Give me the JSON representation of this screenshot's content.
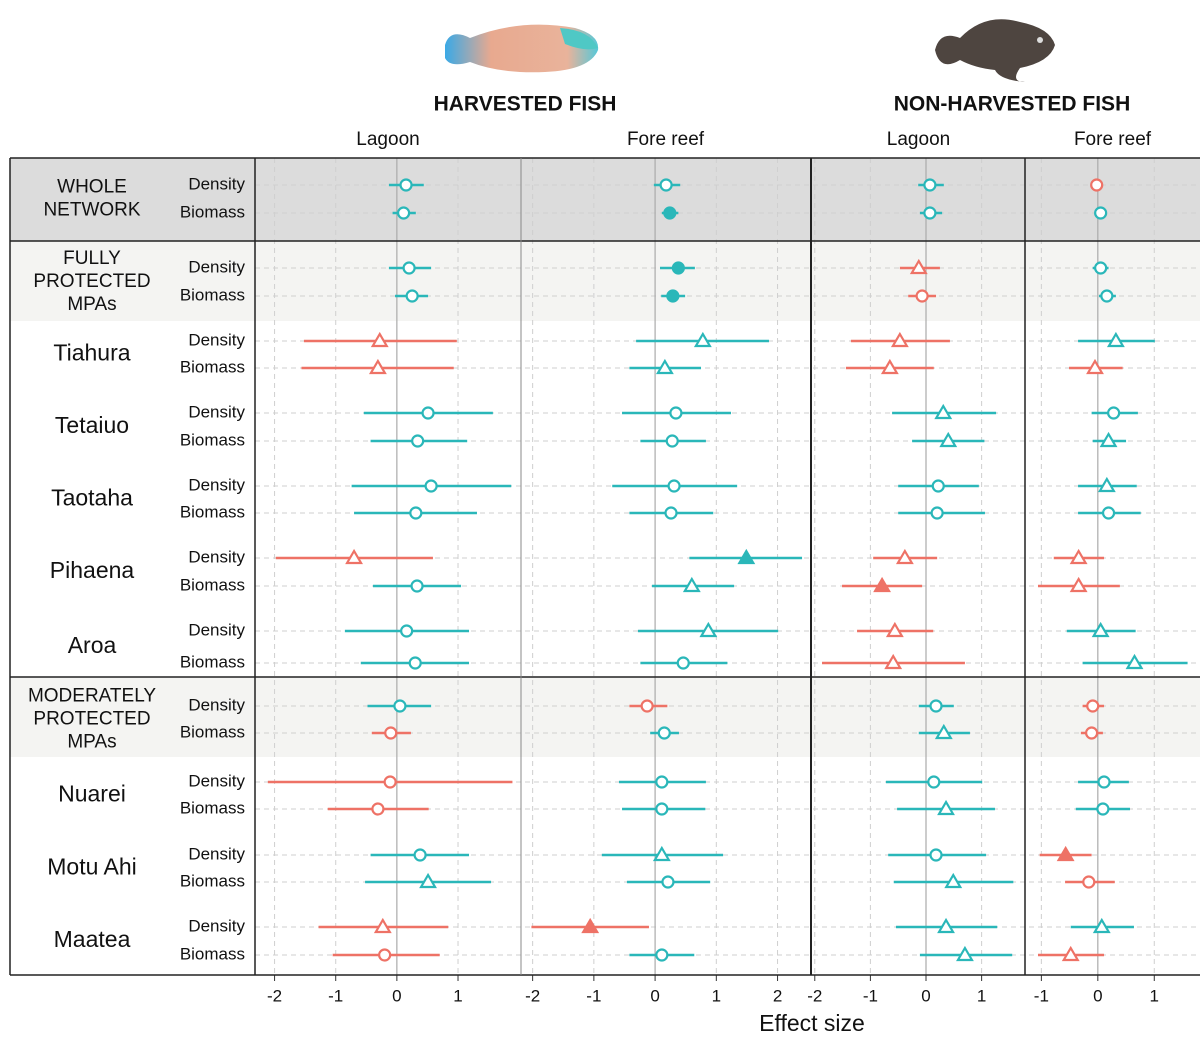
{
  "chart_data": {
    "type": "forest",
    "x_label": "Effect size",
    "metrics": [
      "Density",
      "Biomass"
    ],
    "groups": [
      {
        "label_lines": [
          "WHOLE",
          "NETWORK"
        ],
        "label_style": "caps",
        "background": "#dcdcdc"
      },
      {
        "label_lines": [
          "FULLY",
          "PROTECTED",
          "MPAs"
        ],
        "label_style": "caps",
        "background": "#f4f4f2"
      },
      {
        "label_lines": [
          "Tiahura"
        ],
        "label_style": "site",
        "background": "#ffffff"
      },
      {
        "label_lines": [
          "Tetaiuo"
        ],
        "label_style": "site",
        "background": "#ffffff"
      },
      {
        "label_lines": [
          "Taotaha"
        ],
        "label_style": "site",
        "background": "#ffffff"
      },
      {
        "label_lines": [
          "Pihaena"
        ],
        "label_style": "site",
        "background": "#ffffff"
      },
      {
        "label_lines": [
          "Aroa"
        ],
        "label_style": "site",
        "background": "#ffffff"
      },
      {
        "label_lines": [
          "MODERATELY",
          "PROTECTED",
          "MPAs"
        ],
        "label_style": "caps",
        "background": "#f4f4f2"
      },
      {
        "label_lines": [
          "Nuarei"
        ],
        "label_style": "site",
        "background": "#ffffff"
      },
      {
        "label_lines": [
          "Motu Ahi"
        ],
        "label_style": "site",
        "background": "#ffffff"
      },
      {
        "label_lines": [
          "Maatea"
        ],
        "label_style": "site",
        "background": "#ffffff"
      }
    ],
    "sections": [
      {
        "title": "HARVESTED FISH",
        "panels": [
          {
            "title": "Lagoon",
            "xlim": [
              -2.32,
              2.03
            ],
            "xticks": [
              -2,
              -1,
              0,
              1
            ],
            "values": [
              0.15,
              0.11,
              0.2,
              0.25,
              -0.28,
              -0.31,
              0.51,
              0.34,
              0.56,
              0.31,
              -0.7,
              0.33,
              0.16,
              0.3,
              0.05,
              -0.1,
              -0.11,
              -0.31,
              0.38,
              0.51,
              -0.23,
              -0.2
            ],
            "lower": [
              -0.13,
              -0.07,
              -0.13,
              -0.03,
              -1.52,
              -1.56,
              -0.54,
              -0.43,
              -0.74,
              -0.7,
              -1.98,
              -0.39,
              -0.85,
              -0.59,
              -0.48,
              -0.41,
              -2.11,
              -1.13,
              -0.43,
              -0.52,
              -1.28,
              -1.05
            ],
            "upper": [
              0.44,
              0.31,
              0.56,
              0.51,
              0.98,
              0.93,
              1.57,
              1.15,
              1.87,
              1.31,
              0.59,
              1.05,
              1.18,
              1.18,
              0.56,
              0.23,
              1.89,
              0.52,
              1.18,
              1.54,
              0.84,
              0.7
            ],
            "colors": [
              "#2ab7b9",
              "#2ab7b9",
              "#2ab7b9",
              "#2ab7b9",
              "#ee7266",
              "#ee7266",
              "#2ab7b9",
              "#2ab7b9",
              "#2ab7b9",
              "#2ab7b9",
              "#ee7266",
              "#2ab7b9",
              "#2ab7b9",
              "#2ab7b9",
              "#2ab7b9",
              "#ee7266",
              "#ee7266",
              "#ee7266",
              "#2ab7b9",
              "#2ab7b9",
              "#ee7266",
              "#ee7266"
            ],
            "markers": [
              "circle",
              "circle",
              "circle",
              "circle",
              "triangle",
              "triangle",
              "circle",
              "circle",
              "circle",
              "circle",
              "triangle",
              "circle",
              "circle",
              "circle",
              "circle",
              "circle",
              "circle",
              "circle",
              "circle",
              "triangle",
              "triangle",
              "circle"
            ],
            "filled": [
              false,
              false,
              false,
              false,
              false,
              false,
              false,
              false,
              false,
              false,
              false,
              false,
              false,
              false,
              false,
              false,
              false,
              false,
              false,
              false,
              false,
              false
            ]
          },
          {
            "title": "Fore reef",
            "xlim": [
              -2.19,
              2.53
            ],
            "xticks": [
              -2,
              -1,
              0,
              1,
              2
            ],
            "values": [
              0.18,
              0.24,
              0.38,
              0.29,
              0.78,
              0.16,
              0.34,
              0.28,
              0.31,
              0.26,
              1.49,
              0.6,
              0.87,
              0.46,
              -0.13,
              0.15,
              0.11,
              0.11,
              0.11,
              0.21,
              -1.06,
              0.11
            ],
            "lower": [
              -0.02,
              0.11,
              0.08,
              0.1,
              -0.31,
              -0.42,
              -0.54,
              -0.24,
              -0.7,
              -0.42,
              0.56,
              -0.05,
              -0.28,
              -0.24,
              -0.42,
              -0.08,
              -0.59,
              -0.54,
              -0.87,
              -0.46,
              -2.02,
              -0.42
            ],
            "upper": [
              0.41,
              0.38,
              0.65,
              0.49,
              1.86,
              0.75,
              1.24,
              0.83,
              1.34,
              0.95,
              2.4,
              1.29,
              2.01,
              1.18,
              0.2,
              0.39,
              0.83,
              0.82,
              1.11,
              0.9,
              -0.1,
              0.64
            ],
            "colors": [
              "#2ab7b9",
              "#2ab7b9",
              "#2ab7b9",
              "#2ab7b9",
              "#2ab7b9",
              "#2ab7b9",
              "#2ab7b9",
              "#2ab7b9",
              "#2ab7b9",
              "#2ab7b9",
              "#2ab7b9",
              "#2ab7b9",
              "#2ab7b9",
              "#2ab7b9",
              "#ee7266",
              "#2ab7b9",
              "#2ab7b9",
              "#2ab7b9",
              "#2ab7b9",
              "#2ab7b9",
              "#ee7266",
              "#2ab7b9"
            ],
            "markers": [
              "circle",
              "circle",
              "circle",
              "circle",
              "triangle",
              "triangle",
              "circle",
              "circle",
              "circle",
              "circle",
              "triangle",
              "triangle",
              "triangle",
              "circle",
              "circle",
              "circle",
              "circle",
              "circle",
              "triangle",
              "circle",
              "triangle",
              "circle"
            ],
            "filled": [
              false,
              true,
              true,
              true,
              false,
              false,
              false,
              false,
              false,
              false,
              true,
              false,
              false,
              false,
              false,
              false,
              false,
              false,
              false,
              false,
              true,
              false
            ]
          }
        ]
      },
      {
        "title": "NON-HARVESTED FISH",
        "panels": [
          {
            "title": "Lagoon",
            "xlim": [
              -2.05,
              1.78
            ],
            "xticks": [
              -2,
              -1,
              0,
              1
            ],
            "values": [
              0.07,
              0.07,
              -0.13,
              -0.07,
              -0.47,
              -0.65,
              0.31,
              0.4,
              0.22,
              0.2,
              -0.38,
              -0.79,
              -0.56,
              -0.59,
              0.18,
              0.32,
              0.14,
              0.36,
              0.18,
              0.49,
              0.36,
              0.7
            ],
            "lower": [
              -0.14,
              -0.11,
              -0.47,
              -0.32,
              -1.35,
              -1.44,
              -0.61,
              -0.25,
              -0.5,
              -0.5,
              -0.95,
              -1.51,
              -1.24,
              -1.87,
              -0.13,
              -0.13,
              -0.72,
              -0.52,
              -0.68,
              -0.58,
              -0.54,
              -0.11
            ],
            "upper": [
              0.32,
              0.29,
              0.25,
              0.18,
              0.43,
              0.14,
              1.26,
              1.05,
              0.95,
              1.06,
              0.2,
              -0.07,
              0.13,
              0.7,
              0.5,
              0.79,
              1.01,
              1.24,
              1.08,
              1.57,
              1.28,
              1.55
            ],
            "colors": [
              "#2ab7b9",
              "#2ab7b9",
              "#ee7266",
              "#ee7266",
              "#ee7266",
              "#ee7266",
              "#2ab7b9",
              "#2ab7b9",
              "#2ab7b9",
              "#2ab7b9",
              "#ee7266",
              "#ee7266",
              "#ee7266",
              "#ee7266",
              "#2ab7b9",
              "#2ab7b9",
              "#2ab7b9",
              "#2ab7b9",
              "#2ab7b9",
              "#2ab7b9",
              "#2ab7b9",
              "#2ab7b9"
            ],
            "markers": [
              "circle",
              "circle",
              "triangle",
              "circle",
              "triangle",
              "triangle",
              "triangle",
              "triangle",
              "circle",
              "circle",
              "triangle",
              "triangle",
              "triangle",
              "triangle",
              "circle",
              "triangle",
              "circle",
              "triangle",
              "circle",
              "triangle",
              "triangle",
              "triangle"
            ],
            "filled": [
              false,
              false,
              false,
              false,
              false,
              false,
              false,
              false,
              false,
              false,
              false,
              true,
              false,
              false,
              false,
              false,
              false,
              false,
              false,
              false,
              false,
              false
            ]
          },
          {
            "title": "Fore reef",
            "xlim": [
              -1.29,
              1.81
            ],
            "xticks": [
              -1,
              0,
              1
            ],
            "values": [
              -0.02,
              0.05,
              0.05,
              0.16,
              0.32,
              -0.05,
              0.28,
              0.19,
              0.16,
              0.19,
              -0.34,
              -0.34,
              0.05,
              0.65,
              -0.09,
              -0.11,
              0.11,
              0.09,
              -0.57,
              -0.16,
              0.07,
              -0.48
            ],
            "lower": [
              -0.05,
              0.02,
              -0.09,
              0.02,
              -0.35,
              -0.51,
              -0.11,
              -0.09,
              -0.35,
              -0.35,
              -0.78,
              -1.06,
              -0.55,
              -0.27,
              -0.27,
              -0.3,
              -0.35,
              -0.39,
              -1.03,
              -0.58,
              -0.48,
              -1.06
            ],
            "upper": [
              0.02,
              0.08,
              0.19,
              0.32,
              1.01,
              0.44,
              0.71,
              0.5,
              0.69,
              0.76,
              0.11,
              0.39,
              0.67,
              1.59,
              0.11,
              0.09,
              0.55,
              0.57,
              -0.11,
              0.3,
              0.64,
              0.11
            ],
            "colors": [
              "#ee7266",
              "#2ab7b9",
              "#2ab7b9",
              "#2ab7b9",
              "#2ab7b9",
              "#ee7266",
              "#2ab7b9",
              "#2ab7b9",
              "#2ab7b9",
              "#2ab7b9",
              "#ee7266",
              "#ee7266",
              "#2ab7b9",
              "#2ab7b9",
              "#ee7266",
              "#ee7266",
              "#2ab7b9",
              "#2ab7b9",
              "#ee7266",
              "#ee7266",
              "#2ab7b9",
              "#ee7266"
            ],
            "markers": [
              "circle",
              "circle",
              "circle",
              "circle",
              "triangle",
              "triangle",
              "circle",
              "triangle",
              "triangle",
              "circle",
              "triangle",
              "triangle",
              "triangle",
              "triangle",
              "circle",
              "circle",
              "circle",
              "circle",
              "triangle",
              "circle",
              "triangle",
              "triangle"
            ],
            "filled": [
              false,
              false,
              false,
              false,
              false,
              false,
              false,
              false,
              false,
              false,
              false,
              false,
              false,
              false,
              false,
              false,
              false,
              false,
              true,
              false,
              false,
              false
            ]
          }
        ]
      }
    ]
  }
}
